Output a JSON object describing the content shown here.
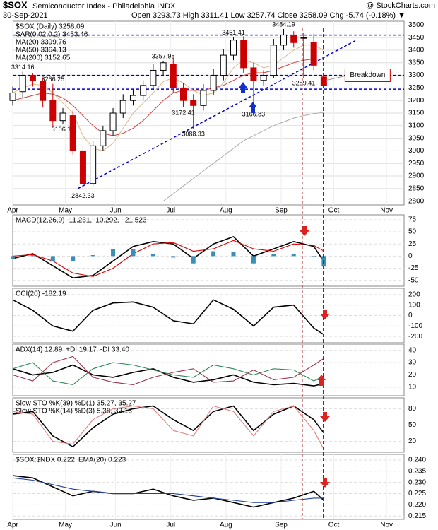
{
  "header": {
    "symbol": "$SOX",
    "name": "Semiconductor Index - Philadelphia INDX",
    "source": "@ StockCharts.com",
    "date": "30-Sep-2021",
    "quote": "Open 3293.73  High 3311.41  Low 3257.74  Close 3258.09  Chg -5.74 (-0.18%) ▼"
  },
  "chart_data": [
    {
      "type": "candlestick",
      "legend": [
        {
          "label": "$SOX (Daily) 3258.09",
          "color": "#000000"
        },
        {
          "label": "SAR(0.02,0.2) 3453.46",
          "color": "#888888"
        }
      ],
      "x": [
        0,
        4,
        8,
        12,
        16,
        20,
        24,
        28,
        32,
        36,
        40,
        44,
        48,
        52,
        56,
        60,
        64,
        68,
        72,
        76,
        80,
        84,
        88,
        92,
        96,
        100,
        104,
        108,
        112,
        116,
        120,
        124
      ],
      "open": [
        3200,
        3235,
        3300,
        3275,
        3200,
        3120,
        3140,
        3000,
        2870,
        3020,
        3080,
        3150,
        3200,
        3220,
        3260,
        3320,
        3345,
        3250,
        3200,
        3180,
        3240,
        3300,
        3380,
        3440,
        3330,
        3280,
        3300,
        3420,
        3460,
        3450,
        3430,
        3293.73
      ],
      "high": [
        3255,
        3314.16,
        3310,
        3290,
        3266.25,
        3170,
        3160,
        3020,
        3040,
        3100,
        3170,
        3225,
        3245,
        3280,
        3345,
        3357.98,
        3370,
        3270,
        3225,
        3265,
        3325,
        3405,
        3451.41,
        3455,
        3350,
        3320,
        3445,
        3484.19,
        3475,
        3470,
        3465,
        3311.41
      ],
      "low": [
        3180,
        3210,
        3255,
        3175,
        3095,
        3106.19,
        2985,
        2842.33,
        2860,
        3000,
        3060,
        3130,
        3180,
        3200,
        3240,
        3300,
        3230,
        3172.41,
        3088.33,
        3160,
        3220,
        3280,
        3360,
        3310,
        3166.83,
        3260,
        3290,
        3400,
        3410,
        3289.41,
        3320,
        3257.74
      ],
      "close": [
        3230,
        3300,
        3280,
        3200,
        3120,
        3150,
        3000,
        2870,
        3020,
        3080,
        3150,
        3200,
        3220,
        3260,
        3320,
        3350,
        3250,
        3200,
        3180,
        3240,
        3300,
        3380,
        3440,
        3330,
        3280,
        3300,
        3420,
        3460,
        3430,
        3450,
        3340,
        3258.09
      ],
      "high_value_labels": [
        null,
        "3314.16",
        null,
        null,
        "3266.25",
        null,
        null,
        null,
        null,
        null,
        null,
        null,
        null,
        null,
        null,
        "3357.98",
        null,
        null,
        null,
        null,
        null,
        null,
        "3451.41",
        null,
        null,
        null,
        null,
        "3484.19",
        null,
        null,
        null,
        null
      ],
      "low_value_labels": [
        null,
        null,
        null,
        null,
        null,
        "3106.19",
        null,
        "2842.33",
        null,
        null,
        null,
        null,
        null,
        null,
        null,
        null,
        null,
        "3172.41",
        "3088.33",
        null,
        null,
        null,
        null,
        null,
        "3166.83",
        null,
        null,
        null,
        null,
        "3289.41",
        null,
        null
      ],
      "up_color": "#000000",
      "down_color": "#cc0000",
      "series": [
        {
          "name": "MA(20) 3399.76",
          "color": "#d8b98a",
          "values": [
            3230,
            3250,
            3265,
            3260,
            3230,
            3190,
            3150,
            3060,
            3010,
            3000,
            3030,
            3090,
            3150,
            3190,
            3230,
            3275,
            3290,
            3270,
            3240,
            3220,
            3230,
            3270,
            3330,
            3360,
            3350,
            3330,
            3340,
            3370,
            3400,
            3420,
            3420,
            3399.76
          ]
        },
        {
          "name": "MA(50) 3364.13",
          "color": "#d04040",
          "values": [
            3200,
            3210,
            3220,
            3230,
            3225,
            3210,
            3180,
            3140,
            3100,
            3070,
            3060,
            3070,
            3090,
            3120,
            3160,
            3200,
            3230,
            3240,
            3240,
            3240,
            3250,
            3260,
            3280,
            3300,
            3310,
            3310,
            3320,
            3335,
            3350,
            3360,
            3365,
            3364.13
          ]
        },
        {
          "name": "MA(200) 3152.65",
          "color": "#aaaaaa",
          "values": [
            null,
            null,
            null,
            null,
            null,
            null,
            null,
            null,
            null,
            null,
            null,
            null,
            null,
            null,
            null,
            2800,
            2830,
            2860,
            2890,
            2920,
            2950,
            2980,
            3010,
            3040,
            3060,
            3080,
            3100,
            3115,
            3130,
            3140,
            3148,
            3152.65
          ]
        }
      ],
      "levels": [
        3460,
        3300,
        3245
      ],
      "level_color": "#0000cc",
      "trendline": {
        "x": [
          26,
          137
        ],
        "y": [
          2850,
          3440
        ]
      },
      "annotation": "Breakdown",
      "xlim": [
        0,
        156
      ],
      "ylim": [
        2785,
        3515
      ],
      "yticks": [
        2800,
        2850,
        2900,
        2950,
        3000,
        3050,
        3100,
        3150,
        3200,
        3250,
        3300,
        3350,
        3400,
        3450,
        3500
      ],
      "xticks": [
        {
          "value": 0,
          "label": "Apr"
        },
        {
          "value": 21,
          "label": "May"
        },
        {
          "value": 41,
          "label": "Jun"
        },
        {
          "value": 63,
          "label": "Jul"
        },
        {
          "value": 85,
          "label": "Aug"
        },
        {
          "value": 107,
          "label": "Sep"
        },
        {
          "value": 128,
          "label": "Oct"
        },
        {
          "value": 149,
          "label": "Nov"
        }
      ],
      "grid": true
    },
    {
      "type": "line",
      "x": [
        0,
        8,
        16,
        24,
        32,
        40,
        48,
        56,
        64,
        72,
        80,
        88,
        96,
        104,
        112,
        120,
        124
      ],
      "series": [
        {
          "name": "MACD(12,26,9) -11.231,",
          "color": "#000000",
          "values": [
            -5,
            5,
            -20,
            -45,
            -40,
            -10,
            20,
            30,
            25,
            -5,
            25,
            40,
            0,
            15,
            30,
            20,
            -11.231
          ]
        },
        {
          "name": "10.292,",
          "color": "#dd0000",
          "values": [
            0,
            3,
            -10,
            -35,
            -42,
            -25,
            5,
            25,
            28,
            10,
            15,
            32,
            15,
            10,
            25,
            22,
            10.292
          ]
        },
        {
          "name": "-21.523",
          "color": "#3a8fb7",
          "kind": "bar",
          "values": [
            -5,
            2,
            -10,
            -10,
            2,
            15,
            15,
            5,
            -3,
            -15,
            10,
            8,
            -15,
            5,
            5,
            -2,
            -21.523
          ]
        }
      ],
      "xlim": [
        0,
        156
      ],
      "ylim": [
        -62,
        85
      ],
      "yticks": [
        -50,
        -25,
        0,
        25,
        50,
        75
      ],
      "grid": true
    },
    {
      "type": "line",
      "x": [
        0,
        8,
        16,
        24,
        32,
        40,
        48,
        56,
        64,
        72,
        80,
        88,
        96,
        104,
        112,
        120,
        124
      ],
      "series": [
        {
          "name": "CCI(20) -182.19",
          "color": "#000000",
          "values": [
            150,
            50,
            -100,
            -150,
            50,
            120,
            130,
            80,
            -50,
            -80,
            150,
            60,
            -100,
            80,
            100,
            -120,
            -182.19
          ]
        }
      ],
      "xlim": [
        0,
        156
      ],
      "ylim": [
        -260,
        260
      ],
      "yticks": [
        -200,
        -100,
        0,
        100,
        200
      ],
      "grid": true
    },
    {
      "type": "line",
      "x": [
        0,
        8,
        16,
        24,
        32,
        40,
        48,
        56,
        64,
        72,
        80,
        88,
        96,
        104,
        112,
        120,
        124
      ],
      "series": [
        {
          "name": "ADX(14) 12.89",
          "color": "#000000",
          "values": [
            25,
            20,
            22,
            28,
            20,
            18,
            22,
            25,
            18,
            14,
            16,
            20,
            14,
            12,
            13,
            11,
            12.89
          ]
        },
        {
          "name": "+DI 19.17",
          "color": "#2e8b57",
          "values": [
            25,
            30,
            15,
            12,
            25,
            30,
            28,
            24,
            20,
            18,
            28,
            25,
            20,
            25,
            24,
            15,
            19.17
          ]
        },
        {
          "name": "-DI 33.40",
          "color": "#a0304a",
          "values": [
            20,
            15,
            30,
            35,
            18,
            14,
            12,
            18,
            22,
            25,
            14,
            15,
            24,
            16,
            18,
            28,
            33.4
          ]
        }
      ],
      "xlim": [
        0,
        156
      ],
      "ylim": [
        3,
        45
      ],
      "yticks": [
        10,
        20,
        30,
        40
      ],
      "grid": true
    },
    {
      "type": "line",
      "x": [
        0,
        8,
        16,
        24,
        32,
        40,
        48,
        56,
        64,
        72,
        80,
        88,
        96,
        104,
        112,
        120,
        124
      ],
      "series": [
        {
          "name": "Slow STO %K(39) %D(1) 35.27, 35.27",
          "color": "#000000",
          "values": [
            70,
            75,
            30,
            10,
            45,
            70,
            80,
            85,
            60,
            40,
            75,
            85,
            40,
            70,
            85,
            60,
            35.27
          ]
        },
        {
          "name": "Slow STO %K(14) %D(3) 5.38, 32.15",
          "color": "#e08080",
          "values": [
            75,
            70,
            20,
            15,
            60,
            80,
            85,
            80,
            40,
            30,
            85,
            75,
            30,
            75,
            85,
            40,
            5.38
          ]
        }
      ],
      "xlim": [
        0,
        156
      ],
      "ylim": [
        0,
        100
      ],
      "yticks": [
        20,
        50,
        80
      ],
      "grid": true
    },
    {
      "type": "line",
      "x": [
        0,
        8,
        16,
        24,
        32,
        40,
        48,
        56,
        64,
        72,
        80,
        88,
        96,
        104,
        112,
        120,
        124
      ],
      "series": [
        {
          "name": "$SOX:$NDX 0.222",
          "color": "#000000",
          "values": [
            0.233,
            0.232,
            0.228,
            0.224,
            0.226,
            0.225,
            0.225,
            0.227,
            0.224,
            0.222,
            0.223,
            0.221,
            0.219,
            0.221,
            0.223,
            0.226,
            0.222
          ]
        },
        {
          "name": "EMA(20) 0.223",
          "color": "#1f3f9f",
          "values": [
            0.232,
            0.231,
            0.229,
            0.227,
            0.226,
            0.225,
            0.225,
            0.225,
            0.225,
            0.224,
            0.223,
            0.222,
            0.221,
            0.221,
            0.222,
            0.223,
            0.223
          ]
        }
      ],
      "xlim": [
        0,
        156
      ],
      "ylim": [
        0.2135,
        0.2425
      ],
      "yticks": [
        0.215,
        {
          "value": 0.22,
          "label": "0.220"
        },
        0.225,
        {
          "value": 0.23,
          "label": "0.230"
        },
        0.235,
        {
          "value": 0.24,
          "label": "0.240"
        }
      ],
      "xticks": [
        {
          "value": 0,
          "label": "Apr"
        },
        {
          "value": 21,
          "label": "May"
        },
        {
          "value": 41,
          "label": "Jun"
        },
        {
          "value": 63,
          "label": "Jul"
        },
        {
          "value": 85,
          "label": "Aug"
        },
        {
          "value": 107,
          "label": "Sep"
        },
        {
          "value": 128,
          "label": "Oct"
        },
        {
          "value": 149,
          "label": "Nov"
        }
      ],
      "grid": true
    }
  ]
}
